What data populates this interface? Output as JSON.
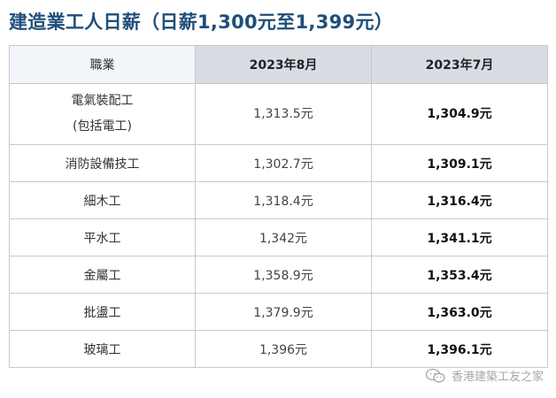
{
  "title": "建造業工人日薪（日薪1,300元至1,399元）",
  "table": {
    "headers": [
      "職業",
      "2023年8月",
      "2023年7月"
    ],
    "rows": [
      {
        "job_line1": "電氣裝配工",
        "job_line2": "(包括電工)",
        "aug": "1,313.5元",
        "jul": "1,304.9元"
      },
      {
        "job": "消防設備技工",
        "aug": "1,302.7元",
        "jul": "1,309.1元"
      },
      {
        "job": "細木工",
        "aug": "1,318.4元",
        "jul": "1,316.4元"
      },
      {
        "job": "平水工",
        "aug": "1,342元",
        "jul": "1,341.1元"
      },
      {
        "job": "金屬工",
        "aug": "1,358.9元",
        "jul": "1,353.4元"
      },
      {
        "job": "批盪工",
        "aug": "1,379.9元",
        "jul": "1,363.0元"
      },
      {
        "job": "玻璃工",
        "aug": "1,396元",
        "jul": "1,396.1元"
      }
    ]
  },
  "watermark": {
    "text": "香港建築工友之家",
    "icon": "wechat-icon"
  }
}
